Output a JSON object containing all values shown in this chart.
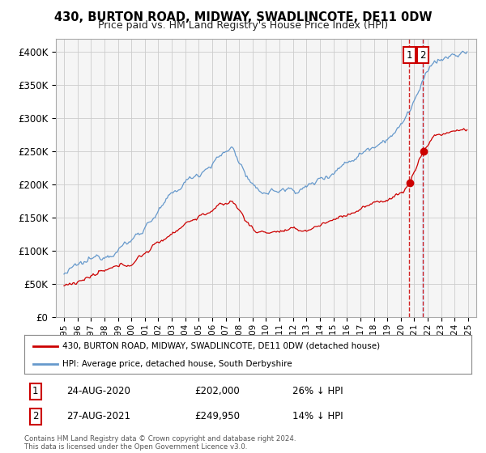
{
  "title": "430, BURTON ROAD, MIDWAY, SWADLINCOTE, DE11 0DW",
  "subtitle": "Price paid vs. HM Land Registry's House Price Index (HPI)",
  "ylabel_ticks": [
    "£0",
    "£50K",
    "£100K",
    "£150K",
    "£200K",
    "£250K",
    "£300K",
    "£350K",
    "£400K"
  ],
  "ytick_values": [
    0,
    50000,
    100000,
    150000,
    200000,
    250000,
    300000,
    350000,
    400000
  ],
  "ylim": [
    0,
    420000
  ],
  "legend_line1": "430, BURTON ROAD, MIDWAY, SWADLINCOTE, DE11 0DW (detached house)",
  "legend_line2": "HPI: Average price, detached house, South Derbyshire",
  "sale1_date": "24-AUG-2020",
  "sale1_price": 202000,
  "sale1_label": "26% ↓ HPI",
  "sale1_year": 2020.64,
  "sale2_date": "27-AUG-2021",
  "sale2_price": 249950,
  "sale2_label": "14% ↓ HPI",
  "sale2_year": 2021.64,
  "footnote": "Contains HM Land Registry data © Crown copyright and database right 2024.\nThis data is licensed under the Open Government Licence v3.0.",
  "property_color": "#cc0000",
  "hpi_color": "#6699cc",
  "vline1_color": "#cc0000",
  "vline2_color": "#99bbdd",
  "vshade_color": "#ddeeff",
  "box_color": "#cc0000",
  "background_color": "#f5f5f5",
  "plot_bg": "#f5f5f5"
}
